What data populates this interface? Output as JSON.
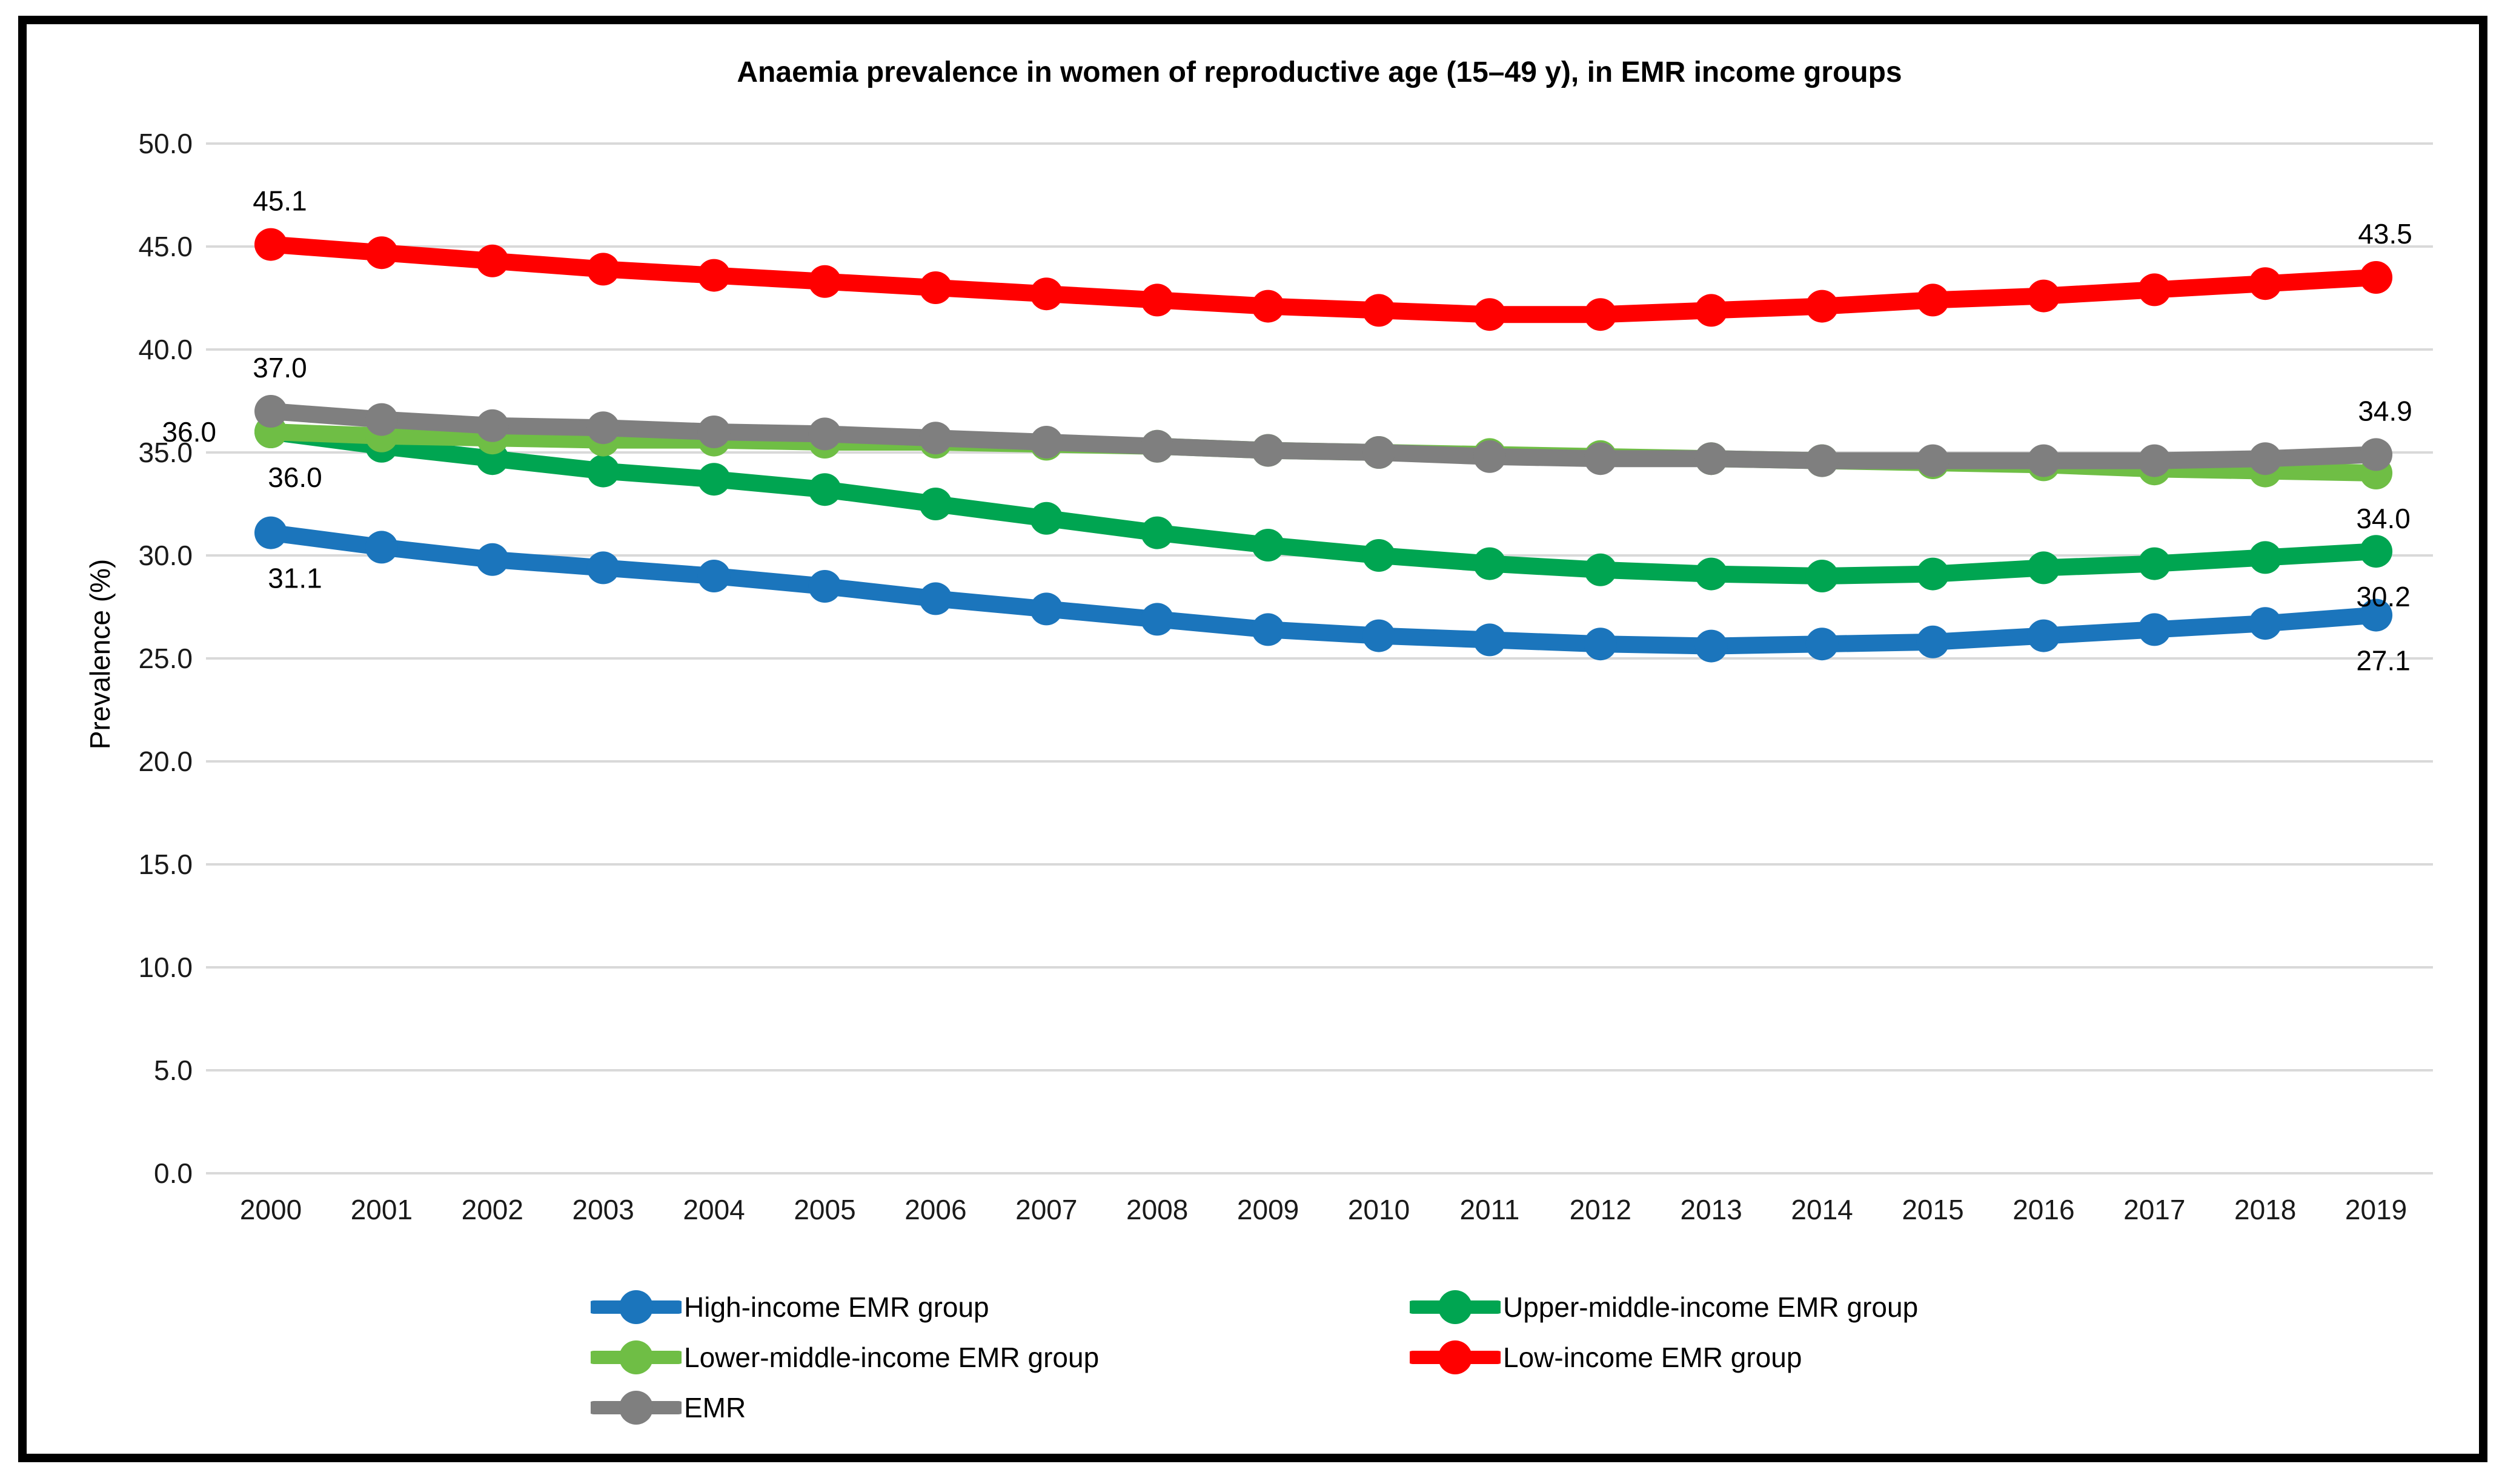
{
  "chart_data": {
    "type": "line",
    "title": "Anaemia prevalence in women of reproductive age (15–49 y), in EMR income groups",
    "xlabel": "",
    "ylabel": "Prevalence (%)",
    "x": [
      2000,
      2001,
      2002,
      2003,
      2004,
      2005,
      2006,
      2007,
      2008,
      2009,
      2010,
      2011,
      2012,
      2013,
      2014,
      2015,
      2016,
      2017,
      2018,
      2019
    ],
    "ylim": [
      0,
      50
    ],
    "ytick_step": 5,
    "ytick_decimals": 1,
    "grid": "horizontal-only",
    "gridline_color": "#D9D9D9",
    "legend_position": "bottom",
    "series": [
      {
        "name": "High-income EMR group",
        "color": "#1B75BC",
        "values": [
          31.1,
          30.4,
          29.8,
          29.4,
          29.0,
          28.5,
          27.9,
          27.4,
          26.9,
          26.4,
          26.1,
          25.9,
          25.7,
          25.6,
          25.7,
          25.8,
          26.1,
          26.4,
          26.7,
          27.1
        ]
      },
      {
        "name": "Upper-middle-income EMR group",
        "color": "#00A551",
        "values": [
          36.0,
          35.3,
          34.7,
          34.1,
          33.7,
          33.2,
          32.5,
          31.8,
          31.1,
          30.5,
          30.0,
          29.6,
          29.3,
          29.1,
          29.0,
          29.1,
          29.4,
          29.6,
          29.9,
          30.2
        ]
      },
      {
        "name": "Lower-middle-income EMR group",
        "color": "#6FBE45",
        "values": [
          36.0,
          35.8,
          35.7,
          35.6,
          35.6,
          35.5,
          35.5,
          35.4,
          35.3,
          35.1,
          35.0,
          34.9,
          34.8,
          34.7,
          34.6,
          34.5,
          34.4,
          34.2,
          34.1,
          34.0
        ]
      },
      {
        "name": "Low-income EMR group",
        "color": "#FF0000",
        "values": [
          45.1,
          44.7,
          44.3,
          43.9,
          43.6,
          43.3,
          43.0,
          42.7,
          42.4,
          42.1,
          41.9,
          41.7,
          41.7,
          41.9,
          42.1,
          42.4,
          42.6,
          42.9,
          43.2,
          43.5
        ]
      },
      {
        "name": "EMR",
        "color": "#7F7F7F",
        "values": [
          37.0,
          36.6,
          36.3,
          36.2,
          36.0,
          35.9,
          35.7,
          35.5,
          35.3,
          35.1,
          35.0,
          34.8,
          34.7,
          34.7,
          34.6,
          34.6,
          34.6,
          34.6,
          34.7,
          34.9
        ]
      }
    ],
    "point_labels": [
      {
        "series": "Low-income EMR group",
        "index": 0,
        "text": "45.1",
        "position": "above"
      },
      {
        "series": "EMR",
        "index": 0,
        "text": "37.0",
        "position": "above"
      },
      {
        "series": "Lower-middle-income EMR group",
        "index": 0,
        "text": "36.0",
        "position": "left"
      },
      {
        "series": "Upper-middle-income EMR group",
        "index": 0,
        "text": "36.0",
        "position": "below"
      },
      {
        "series": "High-income EMR group",
        "index": 0,
        "text": "31.1",
        "position": "below"
      },
      {
        "series": "Low-income EMR group",
        "index": 19,
        "text": "43.5",
        "position": "above"
      },
      {
        "series": "EMR",
        "index": 19,
        "text": "34.9",
        "position": "above"
      },
      {
        "series": "Lower-middle-income EMR group",
        "index": 19,
        "text": "34.0",
        "position": "below"
      },
      {
        "series": "Upper-middle-income EMR group",
        "index": 19,
        "text": "30.2",
        "position": "below"
      },
      {
        "series": "High-income EMR group",
        "index": 19,
        "text": "27.1",
        "position": "below"
      }
    ]
  }
}
